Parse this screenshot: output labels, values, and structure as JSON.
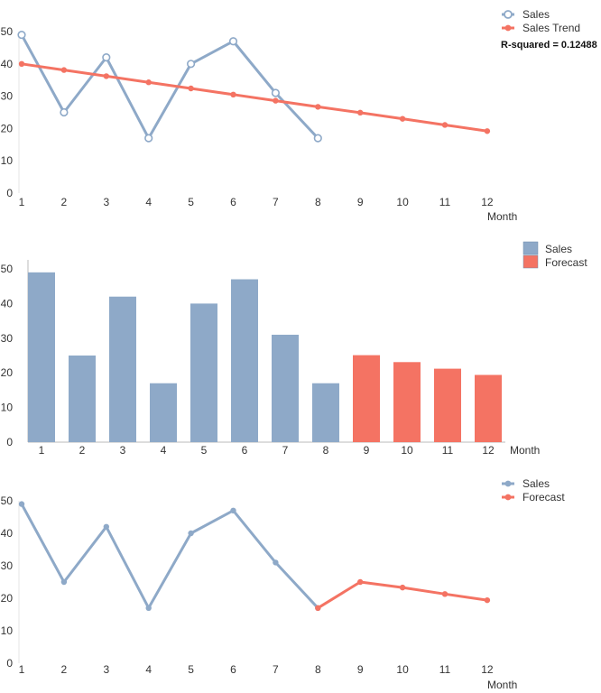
{
  "chart_data": [
    {
      "type": "line",
      "categories": [
        "1",
        "2",
        "3",
        "4",
        "5",
        "6",
        "7",
        "8",
        "9",
        "10",
        "11",
        "12"
      ],
      "xlabel": "Month",
      "ylim": [
        0,
        50
      ],
      "yticks": [
        "0",
        "10",
        "20",
        "30",
        "40",
        "50"
      ],
      "grid": false,
      "legend_position": "top-right",
      "series": [
        {
          "name": "Sales",
          "color": "#8ea9c8",
          "marker": "open-circle",
          "values": [
            49,
            25,
            42,
            17,
            40,
            47,
            31,
            17,
            null,
            null,
            null,
            null
          ]
        },
        {
          "name": "Sales Trend",
          "color": "#f47363",
          "marker": "dot",
          "values": [
            40.0,
            38.1,
            36.2,
            34.3,
            32.4,
            30.5,
            28.6,
            26.7,
            24.9,
            23.0,
            21.1,
            19.2
          ]
        }
      ],
      "annotation": "R-squared = 0.12488"
    },
    {
      "type": "bar",
      "categories": [
        "1",
        "2",
        "3",
        "4",
        "5",
        "6",
        "7",
        "8",
        "9",
        "10",
        "11",
        "12"
      ],
      "xlabel": "Month",
      "ylim": [
        0,
        50
      ],
      "yticks": [
        "0",
        "10",
        "20",
        "30",
        "40",
        "50"
      ],
      "grid": false,
      "legend_position": "top-right",
      "series": [
        {
          "name": "Sales",
          "color": "#8ea9c8",
          "values": [
            49,
            25,
            42,
            17,
            40,
            47,
            31,
            17,
            null,
            null,
            null,
            null
          ]
        },
        {
          "name": "Forecast",
          "color": "#f47363",
          "values": [
            null,
            null,
            null,
            null,
            null,
            null,
            null,
            null,
            25.1,
            23.1,
            21.2,
            19.4
          ]
        }
      ]
    },
    {
      "type": "line",
      "categories": [
        "1",
        "2",
        "3",
        "4",
        "5",
        "6",
        "7",
        "8",
        "9",
        "10",
        "11",
        "12"
      ],
      "xlabel": "Month",
      "ylim": [
        0,
        50
      ],
      "yticks": [
        "0",
        "10",
        "20",
        "30",
        "40",
        "50"
      ],
      "grid": false,
      "legend_position": "top-right",
      "series": [
        {
          "name": "Sales",
          "color": "#8ea9c8",
          "marker": "dot",
          "values": [
            49,
            25,
            42,
            17,
            40,
            47,
            31,
            17,
            null,
            null,
            null,
            null
          ]
        },
        {
          "name": "Forecast",
          "color": "#f47363",
          "marker": "dot",
          "values": [
            null,
            null,
            null,
            null,
            null,
            null,
            null,
            17,
            25,
            23.3,
            21.3,
            19.4
          ]
        }
      ]
    }
  ]
}
